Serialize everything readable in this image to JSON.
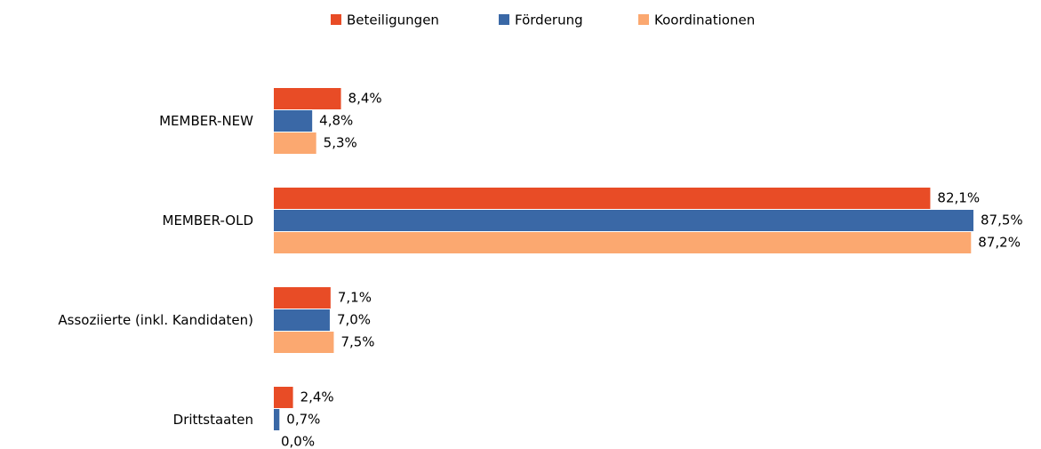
{
  "chart_data": {
    "type": "bar",
    "orientation": "horizontal",
    "categories": [
      "MEMBER-NEW",
      "MEMBER-OLD",
      "Assoziierte (inkl. Kandidaten)",
      "Drittstaaten"
    ],
    "series": [
      {
        "name": "Beteiligungen",
        "color": "#e84c26",
        "values": [
          8.4,
          82.1,
          7.1,
          2.4
        ],
        "value_labels": [
          "8,4%",
          "82,1%",
          "7,1%",
          "2,4%"
        ]
      },
      {
        "name": "Förderung",
        "color": "#3a68a6",
        "values": [
          4.8,
          87.5,
          7.0,
          0.7
        ],
        "value_labels": [
          "4,8%",
          "87,5%",
          "7,0%",
          "0,7%"
        ]
      },
      {
        "name": "Koordinationen",
        "color": "#fba870",
        "values": [
          5.3,
          87.2,
          7.5,
          0.0
        ],
        "value_labels": [
          "5,3%",
          "87,2%",
          "7,5%",
          "0,0%"
        ]
      }
    ],
    "legend": "top"
  }
}
